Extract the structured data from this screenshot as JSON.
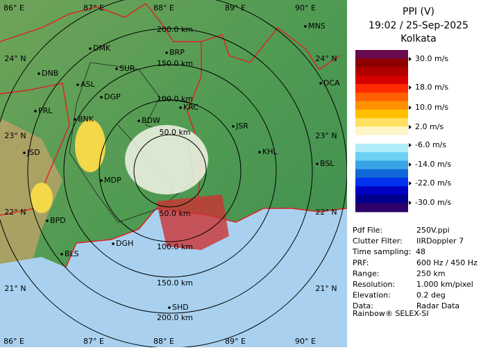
{
  "header": {
    "title": "PPI (V)",
    "time": "19:02 / 25-Sep-2025",
    "station": "Kolkata"
  },
  "colorbar": {
    "labels": [
      "30.0 m/s",
      "18.0 m/s",
      "10.0 m/s",
      "2.0 m/s",
      "-6.0 m/s",
      "-14.0 m/s",
      "-22.0 m/s",
      "-30.0 m/s"
    ]
  },
  "info": {
    "rows": [
      [
        "Pdf File:",
        "250V.ppi"
      ],
      [
        "Clutter Filter:",
        "IIRDoppler 7"
      ],
      [
        "Time sampling:",
        "48"
      ],
      [
        "PRF:",
        "600 Hz / 450 Hz"
      ],
      [
        "Range:",
        "250 km"
      ],
      [
        "Resolution:",
        "1.000 km/pixel"
      ],
      [
        "Elevation:",
        "0.2 deg"
      ],
      [
        "Data:",
        "Radar Data"
      ]
    ],
    "footer": "Rainbow® SELEX-SI"
  },
  "map": {
    "lon_labels": [
      "86° E",
      "87° E",
      "88° E",
      "89° E",
      "90° E"
    ],
    "lat_labels": [
      "24° N",
      "23° N",
      "22° N",
      "21° N"
    ],
    "range_labels": [
      "200.0 km",
      "150.0 km",
      "100.0 km",
      "50.0 km",
      "50.0 km",
      "100.0 km",
      "150.0 km",
      "200.0 km"
    ],
    "cities": [
      "MNS",
      "DMK",
      "BRP",
      "SUR",
      "DNB",
      "ASL",
      "DGP",
      "DCA",
      "KRC",
      "PRL",
      "BNK",
      "BDW",
      "JSR",
      "KHL",
      "JSD",
      "BSL",
      "MDP",
      "BPD",
      "DGH",
      "BLS",
      "SHD"
    ]
  }
}
